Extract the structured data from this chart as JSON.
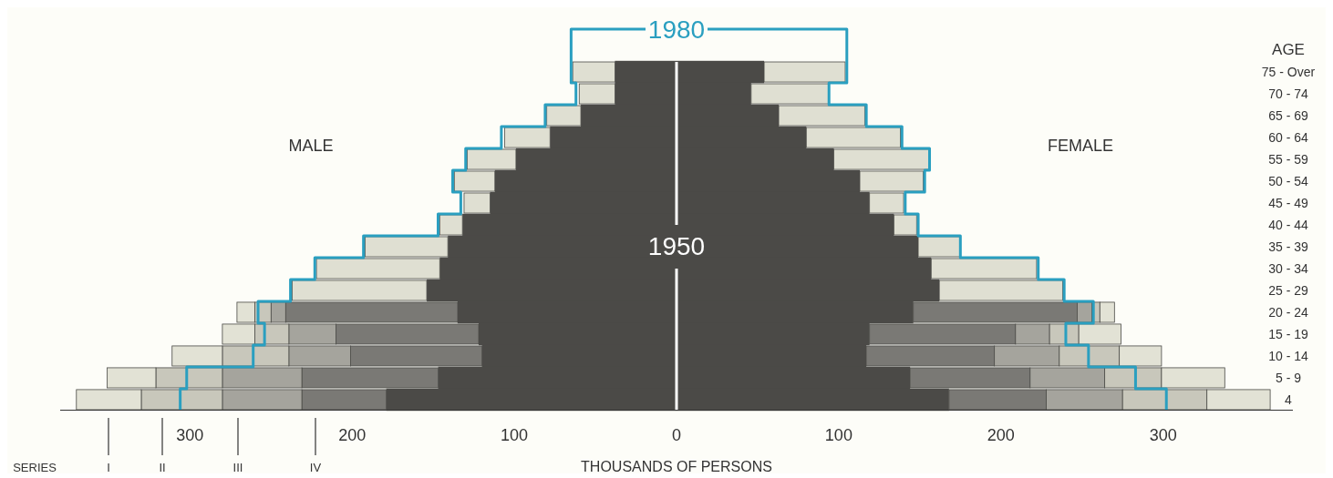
{
  "chart_data": {
    "type": "bar",
    "orientation": "horizontal",
    "stacked": true,
    "xlabel": "THOUSANDS OF PERSONS",
    "ylabel": "AGE",
    "categories": [
      "75 - Over",
      "70 - 74",
      "65 - 69",
      "60 - 64",
      "55 - 59",
      "50 - 54",
      "45 - 49",
      "40 - 44",
      "35 - 39",
      "30 - 34",
      "25 - 29",
      "20 - 24",
      "15 - 19",
      "10 - 14",
      "5 - 9",
      "4"
    ],
    "xlim": [
      -380,
      380
    ],
    "xticks": [
      {
        "value": -300,
        "label": "300"
      },
      {
        "value": -200,
        "label": "200"
      },
      {
        "value": -100,
        "label": "100"
      },
      0,
      100,
      200,
      300
    ],
    "series": [
      {
        "name": "1950",
        "color": "#4b4a47",
        "values": [
          -38,
          -38,
          -59,
          -78,
          -99,
          -112,
          -115,
          -132,
          -141,
          -146,
          -154,
          -135,
          -122,
          -120,
          -147,
          -179
        ]
      },
      {
        "color": "#4b4a47",
        "values": [
          54,
          46,
          63,
          80,
          97,
          113,
          119,
          134,
          149,
          157,
          162,
          146,
          119,
          117,
          144,
          168
        ]
      },
      {
        "colors": [
          "#dfdfd2",
          "#dfdfd2",
          "#dfdfd2",
          "#dfdfd2",
          "#dfdfd2",
          "#dfdfd2",
          "#dfdfd2",
          "#dfdfd2",
          "#dfdfd2",
          "#dfdfd2",
          "#dfdfd2",
          "#7a7975",
          "#7a7975",
          "#7a7975",
          "#7a7975",
          "#7a7975"
        ],
        "values": [
          -26,
          -22,
          -21,
          -28,
          -30,
          -25,
          -16,
          -14,
          -51,
          -76,
          -83,
          -106,
          -88,
          -81,
          -84,
          -52
        ]
      },
      {
        "colors": [
          "#dfdfd2",
          "#dfdfd2",
          "#dfdfd2",
          "#dfdfd2",
          "#dfdfd2",
          "#dfdfd2",
          "#dfdfd2",
          "#dfdfd2",
          "#dfdfd2",
          "#dfdfd2",
          "#dfdfd2",
          "#7a7975",
          "#7a7975",
          "#7a7975",
          "#7a7975",
          "#7a7975"
        ],
        "values": [
          50,
          48,
          53,
          58,
          59,
          39,
          21,
          14,
          26,
          65,
          76,
          101,
          90,
          79,
          74,
          60
        ]
      },
      {
        "color": "#a5a49d",
        "values": [
          null,
          null,
          null,
          null,
          null,
          null,
          null,
          null,
          null,
          null,
          null,
          -9,
          -29,
          -38,
          -49,
          -49
        ]
      },
      {
        "color": "#a5a49d",
        "values": [
          null,
          null,
          null,
          null,
          null,
          null,
          null,
          null,
          null,
          null,
          null,
          9,
          21,
          40,
          46,
          47
        ]
      },
      {
        "color": "#c8c7bb",
        "values": [
          null,
          null,
          null,
          null,
          null,
          null,
          null,
          null,
          null,
          null,
          null,
          -10,
          -21,
          -41,
          -41,
          -50
        ]
      },
      {
        "color": "#c8c7bb",
        "values": [
          null,
          null,
          null,
          null,
          null,
          null,
          null,
          null,
          null,
          null,
          null,
          5,
          18,
          37,
          35,
          52
        ]
      },
      {
        "color": "#e2e2d5",
        "values": [
          null,
          null,
          null,
          null,
          null,
          null,
          null,
          null,
          null,
          null,
          null,
          -11,
          -20,
          -31,
          -30,
          -40
        ]
      },
      {
        "color": "#e2e2d5",
        "values": [
          null,
          null,
          null,
          null,
          null,
          null,
          null,
          null,
          null,
          null,
          null,
          9,
          26,
          26,
          39,
          39
        ]
      },
      {
        "type": "step",
        "name": "1980",
        "color": "#2a9fc0",
        "values": [
          -65,
          -62,
          -81,
          -108,
          -130,
          -138,
          -133,
          -147,
          -193,
          -223,
          -238,
          -258,
          -254,
          -261,
          -302,
          -306
        ]
      },
      {
        "type": "step",
        "color": "#2a9fc0",
        "values": [
          105,
          94,
          117,
          139,
          156,
          153,
          141,
          149,
          175,
          223,
          239,
          257,
          240,
          254,
          283,
          302
        ]
      }
    ],
    "annotations": [
      "MALE",
      "FEMALE",
      "SERIES",
      "I",
      "II",
      "III",
      "IV"
    ]
  }
}
